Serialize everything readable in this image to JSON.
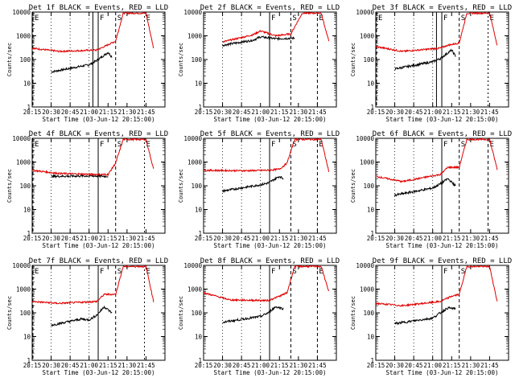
{
  "chart_data": [
    {
      "type": "line",
      "title": "Det 1f BLACK = Events, RED = LLD",
      "xlabel": "Start Time (03-Jun-12 20:15:00)",
      "ylabel": "Counts/sec",
      "y_scale": "log",
      "ylim": [
        1,
        10000
      ],
      "y_ticks": [
        "1",
        "10",
        "100",
        "1000",
        "10000"
      ],
      "x_ticks": [
        "20:15",
        "20:30",
        "20:45",
        "21:00",
        "21:15",
        "21:30",
        "21:45"
      ],
      "markers": [
        "E",
        "F",
        "S",
        "E"
      ],
      "series": [
        {
          "color": "#000000",
          "points": [
            [
              20.5,
              30
            ],
            [
              21.0,
              60
            ],
            [
              21.1,
              90
            ],
            [
              21.25,
              200
            ],
            [
              21.3,
              130
            ]
          ]
        },
        {
          "color": "#e00000",
          "points": [
            [
              20.25,
              300
            ],
            [
              20.6,
              220
            ],
            [
              21.1,
              250
            ],
            [
              21.2,
              350
            ],
            [
              21.35,
              600
            ],
            [
              21.45,
              9000
            ],
            [
              21.75,
              9000
            ],
            [
              21.85,
              300
            ]
          ]
        }
      ]
    },
    {
      "type": "line",
      "title": "Det 2f BLACK = Events, RED = LLD",
      "xlabel": "Start Time (03-Jun-12 20:15:00)",
      "ylabel": "Counts/sec",
      "y_scale": "log",
      "ylim": [
        1,
        10000
      ],
      "y_ticks": [
        "1",
        "10",
        "100",
        "1000",
        "10000"
      ],
      "x_ticks": [
        "20:15",
        "20:30",
        "20:45",
        "21:00",
        "21:15",
        "21:30",
        "21:45"
      ],
      "markers": [
        "F",
        "S",
        "E"
      ],
      "series": [
        {
          "color": "#000000",
          "points": [
            [
              20.5,
              400
            ],
            [
              20.9,
              650
            ],
            [
              21.0,
              900
            ],
            [
              21.2,
              750
            ],
            [
              21.45,
              800
            ]
          ]
        },
        {
          "color": "#e00000",
          "points": [
            [
              20.5,
              550
            ],
            [
              20.9,
              1100
            ],
            [
              21.0,
              1600
            ],
            [
              21.2,
              1000
            ],
            [
              21.4,
              1200
            ],
            [
              21.55,
              9000
            ],
            [
              21.8,
              9000
            ],
            [
              21.9,
              600
            ]
          ]
        }
      ]
    },
    {
      "type": "line",
      "title": "Det 3f BLACK = Events, RED = LLD",
      "xlabel": "Start Time (03-Jun-12 20:15:00)",
      "ylabel": "Counts/sec",
      "y_scale": "log",
      "ylim": [
        1,
        10000
      ],
      "y_ticks": [
        "1",
        "10",
        "100",
        "1000",
        "10000"
      ],
      "x_ticks": [
        "20:15",
        "20:30",
        "20:45",
        "21:00",
        "21:15",
        "21:30",
        "21:45"
      ],
      "markers": [
        "E",
        "F",
        "S",
        "E"
      ],
      "series": [
        {
          "color": "#000000",
          "points": [
            [
              20.5,
              40
            ],
            [
              21.0,
              80
            ],
            [
              21.1,
              110
            ],
            [
              21.25,
              250
            ],
            [
              21.3,
              140
            ]
          ]
        },
        {
          "color": "#e00000",
          "points": [
            [
              20.25,
              350
            ],
            [
              20.6,
              220
            ],
            [
              21.1,
              300
            ],
            [
              21.2,
              400
            ],
            [
              21.35,
              500
            ],
            [
              21.45,
              9000
            ],
            [
              21.75,
              9000
            ],
            [
              21.85,
              400
            ]
          ]
        }
      ]
    },
    {
      "type": "line",
      "title": "Det 4f BLACK = Events, RED = LLD",
      "xlabel": "Start Time (03-Jun-12 20:15:00)",
      "ylabel": "Counts/sec",
      "y_scale": "log",
      "ylim": [
        1,
        10000
      ],
      "y_ticks": [
        "1",
        "10",
        "100",
        "1000",
        "10000"
      ],
      "x_ticks": [
        "20:15",
        "20:30",
        "20:45",
        "21:00",
        "21:15",
        "21:30",
        "21:45"
      ],
      "markers": [
        "E",
        "F",
        "S",
        "E"
      ],
      "series": [
        {
          "color": "#000000",
          "points": [
            [
              20.5,
              250
            ],
            [
              21.0,
              260
            ],
            [
              21.25,
              250
            ]
          ]
        },
        {
          "color": "#e00000",
          "points": [
            [
              20.25,
              450
            ],
            [
              20.6,
              330
            ],
            [
              21.1,
              300
            ],
            [
              21.25,
              300
            ],
            [
              21.35,
              900
            ],
            [
              21.45,
              9000
            ],
            [
              21.75,
              9000
            ],
            [
              21.85,
              500
            ]
          ]
        }
      ]
    },
    {
      "type": "line",
      "title": "Det 5f BLACK = Events, RED = LLD",
      "xlabel": "Start Time (03-Jun-12 20:15:00)",
      "ylabel": "Counts/sec",
      "y_scale": "log",
      "ylim": [
        1,
        10000
      ],
      "y_ticks": [
        "1",
        "10",
        "100",
        "1000",
        "10000"
      ],
      "x_ticks": [
        "20:15",
        "20:30",
        "20:45",
        "21:00",
        "21:15",
        "21:30",
        "21:45"
      ],
      "markers": [
        "F",
        "S",
        "E"
      ],
      "series": [
        {
          "color": "#000000",
          "points": [
            [
              20.5,
              60
            ],
            [
              21.0,
              110
            ],
            [
              21.1,
              130
            ],
            [
              21.25,
              250
            ],
            [
              21.3,
              200
            ]
          ]
        },
        {
          "color": "#e00000",
          "points": [
            [
              20.25,
              450
            ],
            [
              20.8,
              430
            ],
            [
              21.1,
              450
            ],
            [
              21.25,
              500
            ],
            [
              21.35,
              900
            ],
            [
              21.45,
              9000
            ],
            [
              21.8,
              9000
            ],
            [
              21.9,
              400
            ]
          ]
        }
      ]
    },
    {
      "type": "line",
      "title": "Det 6f BLACK = Events, RED = LLD",
      "xlabel": "Start Time (03-Jun-12 20:15:00)",
      "ylabel": "Counts/sec",
      "y_scale": "log",
      "ylim": [
        1,
        10000
      ],
      "y_ticks": [
        "1",
        "10",
        "100",
        "1000",
        "10000"
      ],
      "x_ticks": [
        "20:15",
        "20:30",
        "20:45",
        "21:00",
        "21:15",
        "21:30",
        "21:45"
      ],
      "markers": [
        "F",
        "S",
        "E"
      ],
      "series": [
        {
          "color": "#000000",
          "points": [
            [
              20.5,
              40
            ],
            [
              21.0,
              80
            ],
            [
              21.1,
              120
            ],
            [
              21.2,
              200
            ],
            [
              21.3,
              100
            ]
          ]
        },
        {
          "color": "#e00000",
          "points": [
            [
              20.25,
              250
            ],
            [
              20.6,
              150
            ],
            [
              21.1,
              300
            ],
            [
              21.2,
              600
            ],
            [
              21.35,
              600
            ],
            [
              21.45,
              9000
            ],
            [
              21.75,
              9000
            ],
            [
              21.85,
              500
            ]
          ]
        }
      ]
    },
    {
      "type": "line",
      "title": "Det 7f BLACK = Events, RED = LLD",
      "xlabel": "Start Time (03-Jun-12 20:15:00)",
      "ylabel": "Counts/sec",
      "y_scale": "log",
      "ylim": [
        1,
        10000
      ],
      "y_ticks": [
        "1",
        "10",
        "100",
        "1000",
        "10000"
      ],
      "x_ticks": [
        "20:15",
        "20:30",
        "20:45",
        "21:00",
        "21:15",
        "21:30",
        "21:45"
      ],
      "markers": [
        "E",
        "F",
        "S",
        "E"
      ],
      "series": [
        {
          "color": "#000000",
          "points": [
            [
              20.5,
              30
            ],
            [
              20.9,
              55
            ],
            [
              21.0,
              50
            ],
            [
              21.1,
              80
            ],
            [
              21.2,
              180
            ],
            [
              21.3,
              100
            ]
          ]
        },
        {
          "color": "#e00000",
          "points": [
            [
              20.25,
              300
            ],
            [
              20.6,
              250
            ],
            [
              21.1,
              300
            ],
            [
              21.2,
              600
            ],
            [
              21.35,
              600
            ],
            [
              21.45,
              9000
            ],
            [
              21.75,
              9000
            ],
            [
              21.85,
              300
            ]
          ]
        }
      ]
    },
    {
      "type": "line",
      "title": "Det 8f BLACK = Events, RED = LLD",
      "xlabel": "Start Time (03-Jun-12 20:15:00)",
      "ylabel": "Counts/sec",
      "y_scale": "log",
      "ylim": [
        1,
        10000
      ],
      "y_ticks": [
        "1",
        "10",
        "100",
        "1000",
        "10000"
      ],
      "x_ticks": [
        "20:15",
        "20:30",
        "20:45",
        "21:00",
        "21:15",
        "21:30",
        "21:45"
      ],
      "markers": [
        "F",
        "S",
        "E"
      ],
      "series": [
        {
          "color": "#000000",
          "points": [
            [
              20.5,
              40
            ],
            [
              21.0,
              70
            ],
            [
              21.1,
              100
            ],
            [
              21.2,
              180
            ],
            [
              21.3,
              150
            ]
          ]
        },
        {
          "color": "#e00000",
          "points": [
            [
              20.25,
              700
            ],
            [
              20.6,
              350
            ],
            [
              21.1,
              330
            ],
            [
              21.25,
              500
            ],
            [
              21.35,
              700
            ],
            [
              21.45,
              9000
            ],
            [
              21.8,
              9000
            ],
            [
              21.9,
              800
            ]
          ]
        }
      ]
    },
    {
      "type": "line",
      "title": "Det 9f BLACK = Events, RED = LLD",
      "xlabel": "Start Time (03-Jun-12 20:15:00)",
      "ylabel": "Counts/sec",
      "y_scale": "log",
      "ylim": [
        1,
        10000
      ],
      "y_ticks": [
        "1",
        "10",
        "100",
        "1000",
        "10000"
      ],
      "x_ticks": [
        "20:15",
        "20:30",
        "20:45",
        "21:00",
        "21:15",
        "21:30",
        "21:45"
      ],
      "markers": [
        "F",
        "S"
      ],
      "series": [
        {
          "color": "#000000",
          "points": [
            [
              20.5,
              35
            ],
            [
              21.0,
              60
            ],
            [
              21.1,
              100
            ],
            [
              21.2,
              160
            ],
            [
              21.3,
              150
            ]
          ]
        },
        {
          "color": "#e00000",
          "points": [
            [
              20.25,
              250
            ],
            [
              20.6,
              200
            ],
            [
              21.1,
              300
            ],
            [
              21.25,
              500
            ],
            [
              21.35,
              600
            ],
            [
              21.45,
              9000
            ],
            [
              21.75,
              9000
            ],
            [
              21.85,
              300
            ]
          ]
        }
      ]
    }
  ]
}
